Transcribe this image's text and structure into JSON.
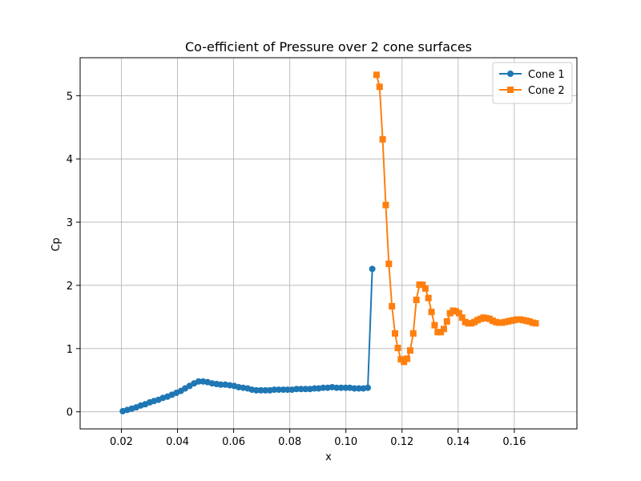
{
  "chart_data": {
    "type": "line",
    "title": "Co-efficient of Pressure over 2 cone surfaces",
    "xlabel": "x",
    "ylabel": "Cp",
    "xlim": [
      0.0053,
      0.1823
    ],
    "ylim": [
      -0.27,
      5.6
    ],
    "xticks": [
      0.02,
      0.04,
      0.06,
      0.08,
      0.1,
      0.12,
      0.14,
      0.16
    ],
    "xtick_labels": [
      "0.02",
      "0.04",
      "0.06",
      "0.08",
      "0.10",
      "0.12",
      "0.14",
      "0.16"
    ],
    "yticks": [
      0,
      1,
      2,
      3,
      4,
      5
    ],
    "ytick_labels": [
      "0",
      "1",
      "2",
      "3",
      "4",
      "5"
    ],
    "grid": true,
    "legend_position": "top-right",
    "series": [
      {
        "name": "Cone 1",
        "color": "#1f77b4",
        "marker": "circle",
        "x": [
          0.0205,
          0.0221,
          0.0237,
          0.0253,
          0.0269,
          0.0285,
          0.0301,
          0.0316,
          0.0332,
          0.0348,
          0.0364,
          0.038,
          0.0396,
          0.0412,
          0.0427,
          0.0443,
          0.0459,
          0.0475,
          0.0491,
          0.0507,
          0.0523,
          0.0539,
          0.0554,
          0.057,
          0.0586,
          0.0602,
          0.0618,
          0.0634,
          0.065,
          0.0665,
          0.0681,
          0.0697,
          0.0713,
          0.0729,
          0.0745,
          0.0761,
          0.0777,
          0.0792,
          0.0808,
          0.0824,
          0.084,
          0.0856,
          0.0872,
          0.0888,
          0.0903,
          0.0919,
          0.0935,
          0.0951,
          0.0967,
          0.0983,
          0.0999,
          0.1014,
          0.103,
          0.1046,
          0.1062,
          0.1078,
          0.1094
        ],
        "y": [
          0.01,
          0.03,
          0.05,
          0.07,
          0.1,
          0.12,
          0.15,
          0.17,
          0.19,
          0.22,
          0.24,
          0.27,
          0.3,
          0.33,
          0.37,
          0.41,
          0.45,
          0.48,
          0.48,
          0.47,
          0.45,
          0.44,
          0.43,
          0.43,
          0.42,
          0.41,
          0.39,
          0.38,
          0.37,
          0.35,
          0.34,
          0.34,
          0.34,
          0.34,
          0.35,
          0.35,
          0.35,
          0.35,
          0.35,
          0.36,
          0.36,
          0.36,
          0.36,
          0.37,
          0.37,
          0.38,
          0.38,
          0.39,
          0.38,
          0.38,
          0.38,
          0.38,
          0.37,
          0.37,
          0.37,
          0.38,
          2.26
        ]
      },
      {
        "name": "Cone 2",
        "color": "#ff7f0e",
        "marker": "square",
        "x": [
          0.1109,
          0.112,
          0.1131,
          0.1142,
          0.1153,
          0.1164,
          0.1175,
          0.1185,
          0.1196,
          0.1207,
          0.1218,
          0.1229,
          0.124,
          0.1251,
          0.1262,
          0.1273,
          0.1283,
          0.1294,
          0.1305,
          0.1316,
          0.1327,
          0.1338,
          0.1349,
          0.136,
          0.1371,
          0.1382,
          0.1392,
          0.1403,
          0.1414,
          0.1425,
          0.1436,
          0.1447,
          0.1458,
          0.1469,
          0.148,
          0.149,
          0.1501,
          0.1512,
          0.1523,
          0.1534,
          0.1545,
          0.1556,
          0.1567,
          0.1578,
          0.1588,
          0.1599,
          0.161,
          0.1621,
          0.1632,
          0.1643,
          0.1654,
          0.1665,
          0.1676
        ],
        "y": [
          5.33,
          5.14,
          4.31,
          3.27,
          2.34,
          1.67,
          1.24,
          1.01,
          0.83,
          0.79,
          0.84,
          0.97,
          1.24,
          1.77,
          2.01,
          2.01,
          1.95,
          1.8,
          1.58,
          1.37,
          1.26,
          1.26,
          1.31,
          1.43,
          1.56,
          1.6,
          1.59,
          1.56,
          1.49,
          1.42,
          1.4,
          1.4,
          1.42,
          1.45,
          1.47,
          1.49,
          1.48,
          1.47,
          1.44,
          1.42,
          1.41,
          1.41,
          1.42,
          1.43,
          1.44,
          1.45,
          1.46,
          1.46,
          1.45,
          1.44,
          1.43,
          1.41,
          1.4
        ]
      }
    ]
  }
}
